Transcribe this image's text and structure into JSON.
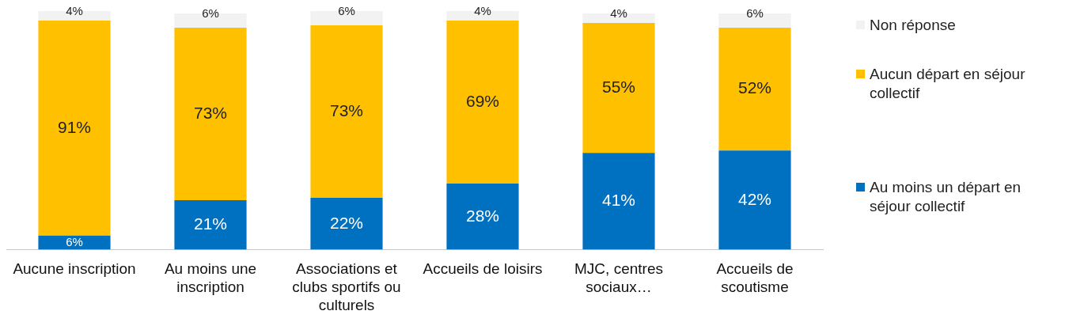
{
  "chart_data": {
    "type": "bar",
    "stacked": true,
    "legend": "right",
    "grid": false,
    "categories": [
      "Aucune inscription",
      "Au moins une inscription",
      "Associations et clubs sportifs ou culturels",
      "Accueils de loisirs",
      "MJC, centres sociaux…",
      "Accueils de scoutisme"
    ],
    "series": [
      {
        "name": "Au moins un départ en séjour collectif",
        "color": "#0070c0",
        "values": [
          6,
          21,
          22,
          28,
          41,
          42
        ],
        "value_labels": [
          "6%",
          "21%",
          "22%",
          "28%",
          "41%",
          "42%"
        ]
      },
      {
        "name": "Aucun départ en séjour collectif",
        "color": "#ffc000",
        "values": [
          91,
          73,
          73,
          69,
          55,
          52
        ],
        "value_labels": [
          "91%",
          "73%",
          "73%",
          "69%",
          "55%",
          "52%"
        ]
      },
      {
        "name": "Non réponse",
        "color": "#f2f2f2",
        "values": [
          4,
          6,
          6,
          4,
          4,
          6
        ],
        "value_labels": [
          "4%",
          "6%",
          "6%",
          "4%",
          "4%",
          "6%"
        ]
      }
    ]
  }
}
